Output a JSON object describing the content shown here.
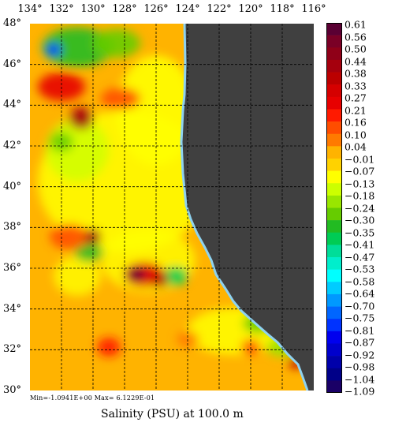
{
  "map": {
    "lon_ticks": [
      "134°",
      "132°",
      "130°",
      "128°",
      "126°",
      "124°",
      "122°",
      "120°",
      "118°",
      "116°"
    ],
    "lat_ticks": [
      "48°",
      "46°",
      "44°",
      "42°",
      "40°",
      "38°",
      "36°",
      "34°",
      "32°",
      "30°"
    ],
    "lon_range": [
      -134,
      -116
    ],
    "lat_range": [
      30,
      48
    ],
    "grid": "dashed",
    "land_color": "#404040",
    "coast_color": "#8ed2ef"
  },
  "colorbar": {
    "labels": [
      "0.61",
      "0.56",
      "0.50",
      "0.44",
      "0.38",
      "0.33",
      "0.27",
      "0.21",
      "0.16",
      "0.10",
      "0.04",
      "-0.01",
      "-0.07",
      "-0.13",
      "-0.18",
      "-0.24",
      "-0.30",
      "-0.35",
      "-0.41",
      "-0.47",
      "-0.53",
      "-0.58",
      "-0.64",
      "-0.70",
      "-0.75",
      "-0.81",
      "-0.87",
      "-0.92",
      "-0.98",
      "-1.04",
      "-1.09"
    ],
    "colors": [
      "#5a0033",
      "#7a0026",
      "#8f0018",
      "#a5000d",
      "#bb0000",
      "#d50000",
      "#e70000",
      "#ff1a00",
      "#ff4d00",
      "#ff7a00",
      "#ffb300",
      "#ffd200",
      "#ffff00",
      "#ccff00",
      "#99e600",
      "#66cc00",
      "#22bb22",
      "#00cc55",
      "#00dd99",
      "#00eecc",
      "#00ffff",
      "#00ccff",
      "#0099ff",
      "#0066ff",
      "#0033ff",
      "#0000ee",
      "#0000cc",
      "#0000aa",
      "#000088",
      "#1a0066"
    ]
  },
  "stats": {
    "text": "Min=-1.0941E+00   Max= 6.1229E-01"
  },
  "caption": "Salinity (PSU) at 100.0 m"
}
